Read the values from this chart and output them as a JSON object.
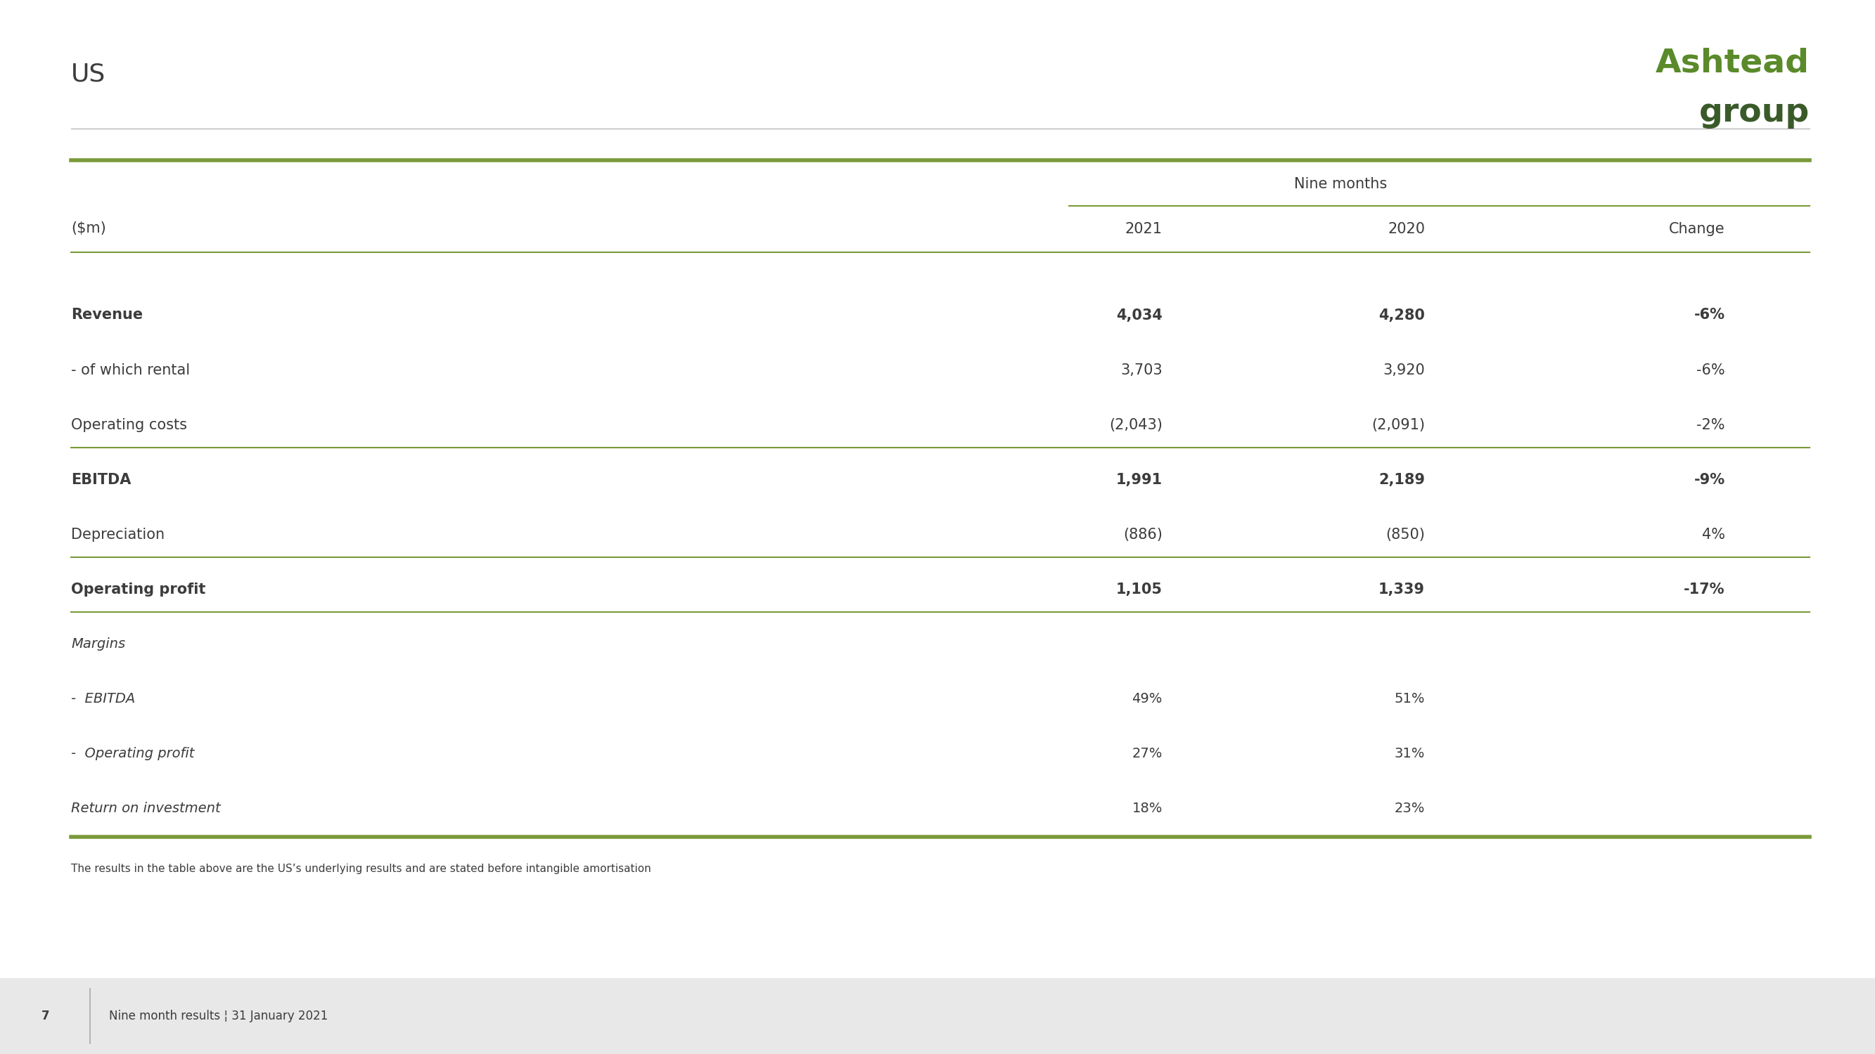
{
  "title": "US",
  "logo_text_line1": "Ashtead",
  "logo_text_line2": "group",
  "logo_color_line1": "#5a8a2a",
  "logo_color_line2": "#2d4a3e",
  "header_nine_months": "Nine months",
  "header_col1": "($m)",
  "header_col2": "2021",
  "header_col3": "2020",
  "header_col4": "Change",
  "rows": [
    {
      "label": "Revenue",
      "val2021": "4,034",
      "val2020": "4,280",
      "change": "-6%",
      "bold": true,
      "italic": false,
      "separator_after": false
    },
    {
      "label": "- of which rental",
      "val2021": "3,703",
      "val2020": "3,920",
      "change": "-6%",
      "bold": false,
      "italic": false,
      "separator_after": false
    },
    {
      "label": "Operating costs",
      "val2021": "(2,043)",
      "val2020": "(2,091)",
      "change": "-2%",
      "bold": false,
      "italic": false,
      "separator_after": true
    },
    {
      "label": "EBITDA",
      "val2021": "1,991",
      "val2020": "2,189",
      "change": "-9%",
      "bold": true,
      "italic": false,
      "separator_after": false
    },
    {
      "label": "Depreciation",
      "val2021": "(886)",
      "val2020": "(850)",
      "change": "4%",
      "bold": false,
      "italic": false,
      "separator_after": true
    },
    {
      "label": "Operating profit",
      "val2021": "1,105",
      "val2020": "1,339",
      "change": "-17%",
      "bold": true,
      "italic": false,
      "separator_after": true
    },
    {
      "label": "Margins",
      "val2021": "",
      "val2020": "",
      "change": "",
      "bold": false,
      "italic": true,
      "separator_after": false
    },
    {
      "label": "-  EBITDA",
      "val2021": "49%",
      "val2020": "51%",
      "change": "",
      "bold": false,
      "italic": true,
      "separator_after": false
    },
    {
      "label": "-  Operating profit",
      "val2021": "27%",
      "val2020": "31%",
      "change": "",
      "bold": false,
      "italic": true,
      "separator_after": false
    },
    {
      "label": "Return on investment",
      "val2021": "18%",
      "val2020": "23%",
      "change": "",
      "bold": false,
      "italic": true,
      "separator_after": false
    }
  ],
  "footnote": "The results in the table above are the US’s underlying results and are stated before intangible amortisation",
  "footer_page": "7",
  "footer_text": "Nine month results ¦ 31 January 2021",
  "green_color": "#7a9a3a",
  "dark_green": "#3a5a2a",
  "text_color": "#3c3c3c",
  "separator_color": "#7a9a3a",
  "background_color": "#ffffff",
  "title_fontsize": 26,
  "table_header_fontsize": 15,
  "table_body_fontsize": 15,
  "footnote_fontsize": 11,
  "footer_fontsize": 12
}
